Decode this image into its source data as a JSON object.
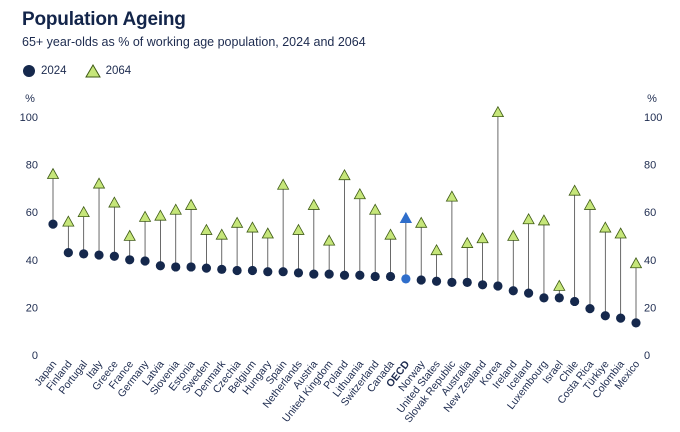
{
  "chart_data": {
    "type": "scatter",
    "title": "Population Ageing",
    "subtitle": "65+ year-olds as % of working age population, 2024 and 2064",
    "ylabel": "%",
    "ylim": [
      0,
      100
    ],
    "yticks": [
      0,
      20,
      40,
      60,
      80,
      100
    ],
    "grid": false,
    "legend_placement": "top-left",
    "colors": {
      "dot_2024": "#15284c",
      "triangle_2064": "#c6e67a",
      "triangle_2064_edge": "#3e5a14",
      "oecd_highlight": "#2f6ecb",
      "stem": "#444444"
    },
    "categories": [
      "Japan",
      "Finland",
      "Portugal",
      "Italy",
      "Greece",
      "France",
      "Germany",
      "Latvia",
      "Slovenia",
      "Estonia",
      "Sweden",
      "Denmark",
      "Czechia",
      "Belgium",
      "Hungary",
      "Spain",
      "Netherlands",
      "Austria",
      "United Kingdom",
      "Poland",
      "Lithuania",
      "Switzerland",
      "Canada",
      "OECD",
      "Norway",
      "United States",
      "Slovak Republic",
      "Australia",
      "New Zealand",
      "Korea",
      "Ireland",
      "Iceland",
      "Luxembourg",
      "Israel",
      "Chile",
      "Costa Rica",
      "Türkiye",
      "Colombia",
      "Mexico"
    ],
    "highlight_category": "OECD",
    "series": [
      {
        "name": "2024",
        "marker": "circle",
        "values": [
          55,
          43,
          42.5,
          42,
          41.5,
          40,
          39.5,
          37.5,
          37,
          37,
          36.5,
          36,
          35.5,
          35.5,
          35,
          35,
          34.5,
          34,
          34,
          33.5,
          33.5,
          33,
          33,
          32,
          31.5,
          31,
          30.5,
          30.5,
          29.5,
          29,
          27,
          26,
          24,
          24,
          22.5,
          19.5,
          16.5,
          15.5,
          13.5
        ]
      },
      {
        "name": "2064",
        "marker": "triangle",
        "values": [
          76,
          56,
          60,
          72,
          64,
          50,
          58,
          58.5,
          61,
          63,
          52.5,
          50.5,
          55.5,
          53.5,
          51,
          71.5,
          52.5,
          63,
          48,
          75.5,
          67.5,
          61,
          50.5,
          57.5,
          55.5,
          44,
          66.5,
          47,
          49,
          102,
          50,
          57,
          56.5,
          29,
          69,
          63,
          53.5,
          51,
          38.5
        ]
      }
    ]
  }
}
